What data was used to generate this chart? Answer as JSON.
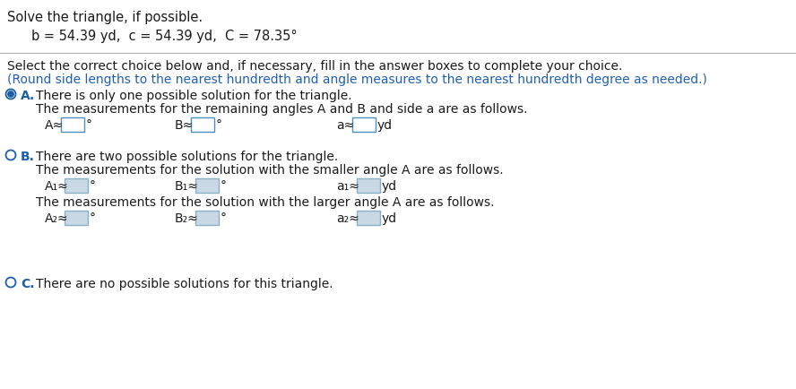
{
  "title": "Solve the triangle, if possible.",
  "given": "b = 54.39 yd,  c = 54.39 yd,  C = 78.35°",
  "instruction1": "Select the correct choice below and, if necessary, fill in the answer boxes to complete your choice.",
  "instruction2": "(Round side lengths to the nearest hundredth and angle measures to the nearest hundredth degree as needed.)",
  "option_A_label": "A.",
  "option_A_text1": "There is only one possible solution for the triangle.",
  "option_A_text2": "The measurements for the remaining angles A and B and side a are as follows.",
  "option_B_label": "B.",
  "option_B_text1": "There are two possible solutions for the triangle.",
  "option_B_text2": "The measurements for the solution with the smaller angle A are as follows.",
  "option_B_text3": "The measurements for the solution with the larger angle A are as follows.",
  "option_C_label": "C.",
  "option_C_text": "There are no possible solutions for this triangle.",
  "selected": "A",
  "bg_color": "#ffffff",
  "text_black": "#1a1a1a",
  "text_blue_label": "#1a5fa8",
  "text_blue_inst": "#2060b0",
  "radio_blue": "#1a5fa8",
  "box_border_A": "#4a8fc0",
  "box_fill_A": "#ffffff",
  "box_border_B": "#8ab0c8",
  "box_fill_B": "#c8d8e4",
  "separator_color": "#b0b0b0",
  "font_size_title": 10.5,
  "font_size_given": 10.5,
  "font_size_inst": 10.0,
  "font_size_opt": 10.0
}
